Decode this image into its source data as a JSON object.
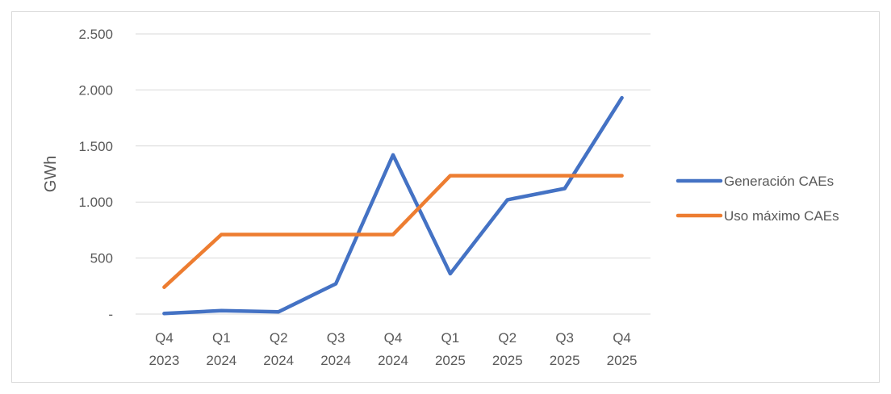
{
  "chart_data": {
    "type": "line",
    "ylabel": "GWh",
    "ylim": [
      0,
      2500
    ],
    "y_ticks": [
      0,
      500,
      1000,
      1500,
      2000,
      2500
    ],
    "y_tick_labels": [
      "-",
      "500",
      "1.000",
      "1.500",
      "2.000",
      "2.500"
    ],
    "categories": [
      [
        "Q4",
        "2023"
      ],
      [
        "Q1",
        "2024"
      ],
      [
        "Q2",
        "2024"
      ],
      [
        "Q3",
        "2024"
      ],
      [
        "Q4",
        "2024"
      ],
      [
        "Q1",
        "2025"
      ],
      [
        "Q2",
        "2025"
      ],
      [
        "Q3",
        "2025"
      ],
      [
        "Q4",
        "2025"
      ]
    ],
    "grid": true,
    "legend_position": "right",
    "series": [
      {
        "name": "Generación CAEs",
        "color": "#4472c4",
        "values": [
          5,
          30,
          20,
          270,
          1420,
          360,
          1020,
          1120,
          1930
        ]
      },
      {
        "name": "Uso máximo CAEs",
        "color": "#ed7d31",
        "values": [
          240,
          710,
          710,
          710,
          710,
          1235,
          1235,
          1235,
          1235
        ]
      }
    ]
  }
}
